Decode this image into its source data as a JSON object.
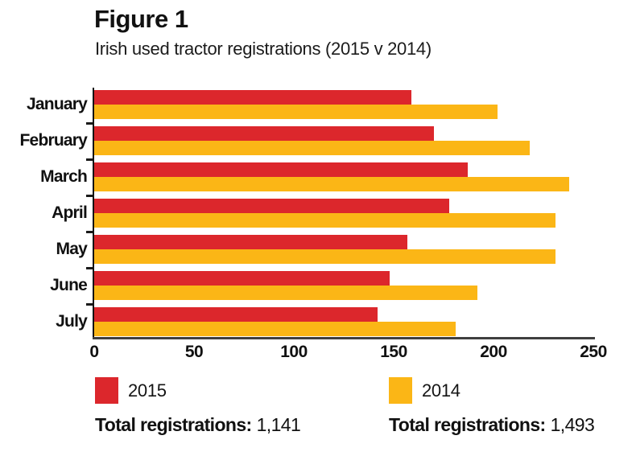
{
  "figure": {
    "label": "Figure 1",
    "subtitle": "Irish used tractor registrations (2015 v 2014)"
  },
  "chart_data": {
    "type": "bar",
    "orientation": "horizontal",
    "title": "Irish used tractor registrations (2015 v 2014)",
    "categories": [
      "January",
      "February",
      "March",
      "April",
      "May",
      "June",
      "July"
    ],
    "series": [
      {
        "name": "2015",
        "color": "#dc272c",
        "values": [
          159,
          170,
          187,
          178,
          157,
          148,
          142
        ],
        "total_label": "Total registrations:",
        "total_value": "1,141"
      },
      {
        "name": "2014",
        "color": "#fbb616",
        "values": [
          202,
          218,
          238,
          231,
          231,
          192,
          181
        ],
        "total_label": "Total registrations:",
        "total_value": "1,493"
      }
    ],
    "xlabel": "",
    "ylabel": "",
    "xlim": [
      0,
      250
    ],
    "x_ticks": [
      0,
      50,
      100,
      150,
      200,
      250
    ],
    "grid": false,
    "legend_position": "bottom"
  }
}
